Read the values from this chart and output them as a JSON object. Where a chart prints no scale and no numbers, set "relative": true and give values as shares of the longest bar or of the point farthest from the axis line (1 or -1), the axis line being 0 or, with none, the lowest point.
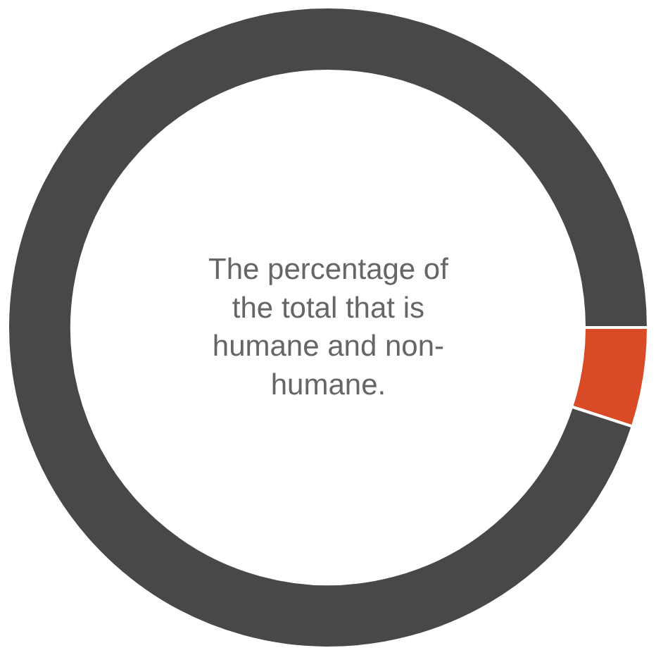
{
  "chart_data": {
    "type": "donut",
    "relative": true,
    "categories": [
      null,
      null
    ],
    "values": [
      5,
      95
    ],
    "colors": [
      "#d94a26",
      "#47484a"
    ],
    "annotations": [
      "The percentage of the total that is humane and non-humane."
    ],
    "legend": false
  }
}
